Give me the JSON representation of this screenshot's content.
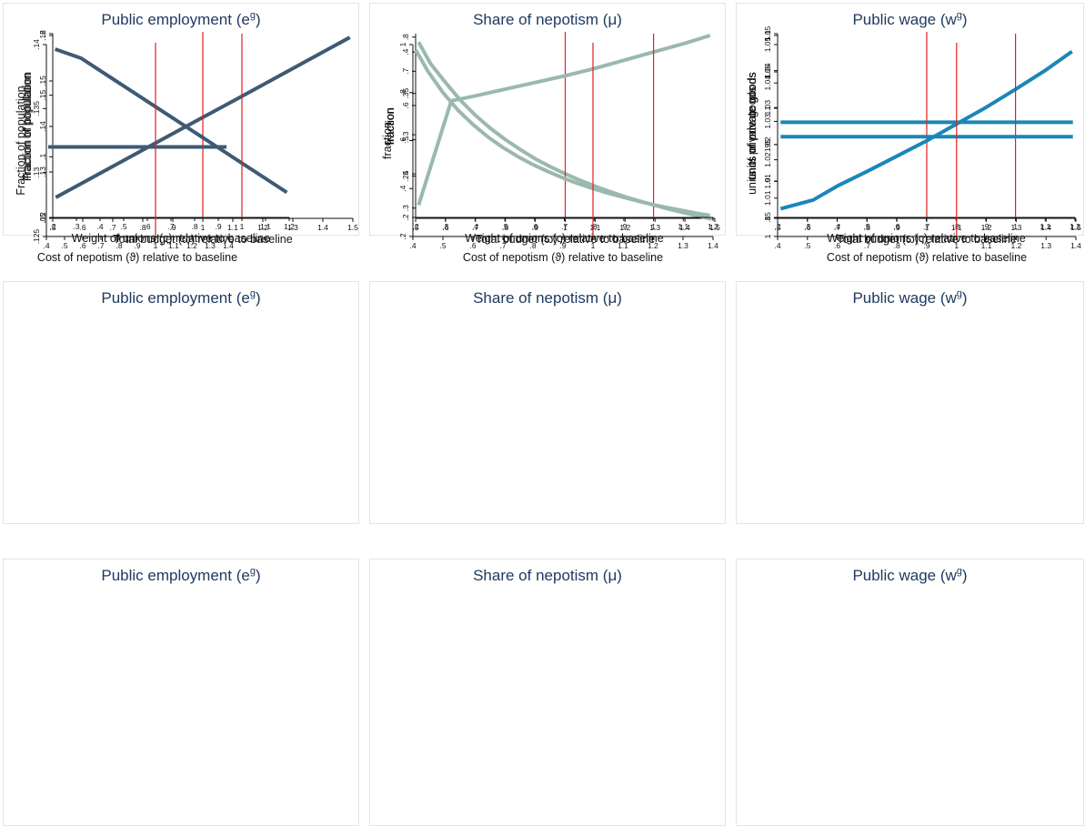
{
  "chart_data": [
    {
      "type": "line",
      "title": "Public employment (e",
      "title_sup": "g",
      "title_close": ")",
      "xlabel": "Total budget (ω) relative to baseline",
      "ylabel": "fraction of population",
      "x_ticks": [
        ".5",
        ".6",
        ".7",
        ".8",
        ".9",
        "1",
        "1.1",
        "1.2",
        "1.3",
        "1.4",
        "1.5"
      ],
      "y_ticks": [
        ".05",
        ".1",
        ".15",
        ".2"
      ],
      "xlim": [
        0.5,
        1.5
      ],
      "ylim": [
        0.05,
        0.2
      ],
      "vline": 1,
      "color": "#3e5a74",
      "series": [
        {
          "x": [
            0.51,
            0.6,
            0.7,
            0.8,
            0.9,
            1.0,
            1.1,
            1.2,
            1.3,
            1.4,
            1.49
          ],
          "y": [
            0.067,
            0.0789,
            0.0922,
            0.1055,
            0.1188,
            0.132,
            0.1452,
            0.1585,
            0.1718,
            0.185,
            0.197
          ]
        }
      ]
    },
    {
      "type": "line",
      "title": "Share of nepotism (μ)",
      "title_sup": "",
      "title_close": "",
      "xlabel": "Total budget (ω) relative to baseline",
      "ylabel": "fraction",
      "x_ticks": [
        ".5",
        ".6",
        ".7",
        ".8",
        ".9",
        "1",
        "1.1",
        "1.2",
        "1.3",
        "1.4",
        "1.5"
      ],
      "y_ticks": [
        ".3",
        ".4",
        ".5",
        ".6",
        ".7",
        ".8"
      ],
      "xlim": [
        0.5,
        1.5
      ],
      "ylim": [
        0.27,
        0.81
      ],
      "vline": 1,
      "color": "#9bb8ae",
      "series": [
        {
          "x": [
            0.51,
            0.55,
            0.6,
            0.65,
            0.7,
            0.75,
            0.8,
            0.85,
            0.9,
            0.95,
            1.0,
            1.05,
            1.1,
            1.15,
            1.2,
            1.25,
            1.3,
            1.35,
            1.4,
            1.45,
            1.49
          ],
          "y": [
            0.785,
            0.722,
            0.667,
            0.615,
            0.571,
            0.533,
            0.5,
            0.471,
            0.444,
            0.421,
            0.4,
            0.381,
            0.364,
            0.348,
            0.333,
            0.32,
            0.308,
            0.296,
            0.286,
            0.276,
            0.268
          ]
        }
      ]
    },
    {
      "type": "line",
      "title": "Public wage (w",
      "title_sup": "g",
      "title_close": ")",
      "xlabel": "Total budget (ω) relative to baseline",
      "ylabel": "units of private goods",
      "x_ticks": [
        ".5",
        ".6",
        ".7",
        ".8",
        ".9",
        "1",
        "1.1",
        "1.2",
        "1.3",
        "1.4",
        "1.5"
      ],
      "y_ticks": [
        "1",
        "1.01",
        "1.02",
        "1.03",
        "1.04",
        "1.05"
      ],
      "xlim": [
        0.5,
        1.5
      ],
      "ylim": [
        1.0,
        1.05
      ],
      "vline": 1,
      "color": "#1b86b8",
      "series": [
        {
          "x": [
            0.51,
            1.49
          ],
          "y": [
            1.026,
            1.026
          ]
        }
      ]
    },
    {
      "type": "line",
      "title": "Public employment (e",
      "title_sup": "g",
      "title_close": ")",
      "xlabel": "Weight of unions (ς) relative to baseline",
      "ylabel": "Fraction of population",
      "x_ticks": [
        ".2",
        ".3",
        ".4",
        ".5",
        ".6",
        ".7",
        ".8",
        ".9",
        "1",
        "1.1",
        "1.2"
      ],
      "y_ticks": [
        ".12",
        ".13",
        ".14",
        ".15",
        ".16"
      ],
      "xlim": [
        0.2,
        1.2
      ],
      "ylim": [
        0.12,
        0.16
      ],
      "vline": 1,
      "color": "#3e5a74",
      "series": [
        {
          "x": [
            0.21,
            0.32,
            1.19
          ],
          "y": [
            0.157,
            0.155,
            0.1255
          ]
        }
      ]
    },
    {
      "type": "line",
      "title": "Share of nepotism (μ)",
      "title_sup": "",
      "title_close": "",
      "xlabel": "Weight of unions (ς) relative to baseline",
      "ylabel": "fraction",
      "x_ticks": [
        ".2",
        ".3",
        ".4",
        ".5",
        ".6",
        ".7",
        ".8",
        ".9",
        "1",
        "1.1",
        "1.2"
      ],
      "y_ticks": [
        ".2",
        ".25",
        ".3",
        ".35",
        ".4"
      ],
      "xlim": [
        0.2,
        1.2
      ],
      "ylim": [
        0.2,
        0.42
      ],
      "vline": 1,
      "color": "#9bb8ae",
      "series": [
        {
          "x": [
            0.21,
            0.32,
            0.4,
            0.5,
            0.6,
            0.7,
            0.8,
            0.9,
            1.0,
            1.1,
            1.19
          ],
          "y": [
            0.215,
            0.341,
            0.347,
            0.355,
            0.363,
            0.371,
            0.38,
            0.39,
            0.4,
            0.41,
            0.42
          ]
        }
      ]
    },
    {
      "type": "line",
      "title": "Public wage (w",
      "title_sup": "g",
      "title_close": ")",
      "xlabel": "Weight of unions (ς) relative to baseline",
      "ylabel": "units of private goods",
      "x_ticks": [
        ".2",
        ".3",
        ".4",
        ".5",
        ".6",
        ".7",
        ".8",
        ".9",
        "1",
        "1.1",
        "1.2"
      ],
      "y_ticks": [
        ".85",
        ".9",
        ".95",
        "1",
        "1.05",
        "1.1"
      ],
      "xlim": [
        0.2,
        1.2
      ],
      "ylim": [
        0.85,
        1.1
      ],
      "vline": 1,
      "color": "#1b86b8",
      "series": [
        {
          "x": [
            0.21,
            0.32,
            0.4,
            0.5,
            0.6,
            0.7,
            0.8,
            0.9,
            1.0,
            1.1,
            1.19
          ],
          "y": [
            0.862,
            0.874,
            0.893,
            0.913,
            0.934,
            0.955,
            0.978,
            1.001,
            1.026,
            1.052,
            1.078
          ]
        }
      ]
    },
    {
      "type": "line",
      "title": "Public employment (e",
      "title_sup": "g",
      "title_close": ")",
      "xlabel": "Cost of nepotism (ϑ) relative to baseline",
      "ylabel": "Fraction of population",
      "x_ticks": [
        ".4",
        ".5",
        ".6",
        ".7",
        ".8",
        ".9",
        "1",
        "1.1",
        "1.2",
        "1.3",
        "1.4"
      ],
      "y_ticks": [
        ".125",
        ".13",
        ".135",
        ".14"
      ],
      "xlim": [
        0.4,
        1.4
      ],
      "ylim": [
        0.125,
        0.14
      ],
      "vline": 1,
      "color": "#3e5a74",
      "series": [
        {
          "x": [
            0.41,
            1.39
          ],
          "y": [
            0.132,
            0.132
          ]
        }
      ]
    },
    {
      "type": "line",
      "title": "Share of nepotism (μ)",
      "title_sup": "",
      "title_close": "",
      "xlabel": "Cost of nepotism (ϑ)  relative to baseline",
      "ylabel": "fraction",
      "x_ticks": [
        ".4",
        ".5",
        ".6",
        ".7",
        ".8",
        ".9",
        "1",
        "1.1",
        "1.2",
        "1.3",
        "1.4"
      ],
      "y_ticks": [
        ".2",
        ".4",
        ".6",
        ".8",
        "1"
      ],
      "xlim": [
        0.4,
        1.4
      ],
      "ylim": [
        0.2,
        1.0
      ],
      "vline": 1,
      "color": "#9bb8ae",
      "series": [
        {
          "x": [
            0.41,
            0.45,
            0.5,
            0.55,
            0.6,
            0.65,
            0.7,
            0.75,
            0.8,
            0.85,
            0.9,
            0.95,
            1.0,
            1.05,
            1.1,
            1.15,
            1.2,
            1.25,
            1.3,
            1.35,
            1.39
          ],
          "y": [
            0.976,
            0.889,
            0.8,
            0.727,
            0.667,
            0.615,
            0.571,
            0.533,
            0.5,
            0.471,
            0.444,
            0.421,
            0.4,
            0.381,
            0.364,
            0.348,
            0.333,
            0.32,
            0.308,
            0.296,
            0.288
          ]
        }
      ]
    },
    {
      "type": "line",
      "title": "Public wage (w",
      "title_sup": "g",
      "title_close": ")",
      "xlabel": "Cost of nepotism (ϑ)  relative to baseline",
      "ylabel": "units of private goods",
      "x_ticks": [
        ".4",
        ".5",
        ".6",
        ".7",
        ".8",
        ".9",
        "1",
        "1.1",
        "1.2",
        "1.3",
        "1.4"
      ],
      "y_ticks": [
        "1",
        "1.01",
        "1.02",
        "1.03",
        "1.04",
        "1.05"
      ],
      "xlim": [
        0.4,
        1.4
      ],
      "ylim": [
        1.0,
        1.05
      ],
      "vline": 1,
      "color": "#1b86b8",
      "series": [
        {
          "x": [
            0.41,
            1.39
          ],
          "y": [
            1.026,
            1.026
          ]
        }
      ]
    }
  ]
}
